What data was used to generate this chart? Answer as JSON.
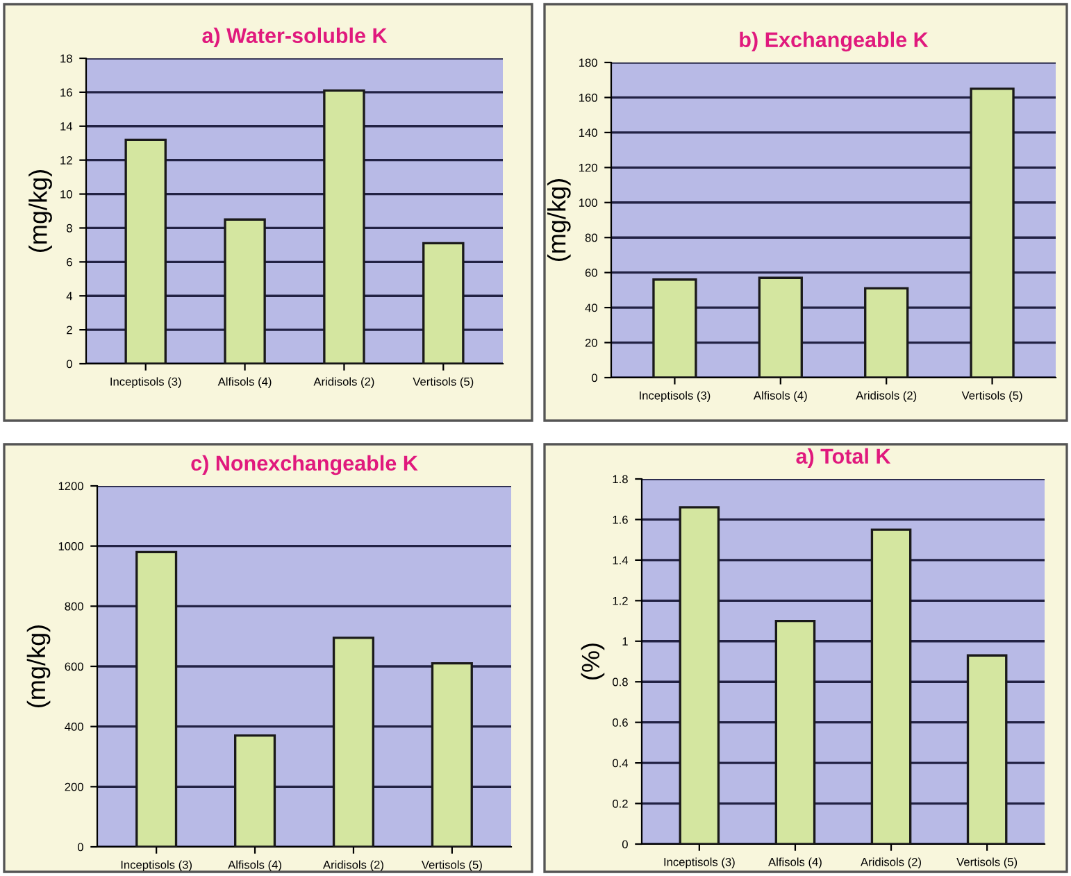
{
  "chart_data": [
    {
      "type": "bar",
      "title": "a) Water-soluble K",
      "ylabel": "(mg/kg)",
      "categories": [
        "Inceptisols (3)",
        "Alfisols (4)",
        "Aridisols (2)",
        "Vertisols (5)"
      ],
      "values": [
        13.2,
        8.5,
        16.1,
        7.1
      ],
      "color": "#d4e6a0",
      "ylim": [
        0,
        18
      ],
      "yticks": [
        0,
        2,
        4,
        6,
        8,
        10,
        12,
        14,
        16,
        18
      ],
      "grid": "y"
    },
    {
      "type": "bar",
      "title": "b) Exchangeable K",
      "ylabel": "(mg/kg)",
      "categories": [
        "Inceptisols (3)",
        "Alfisols (4)",
        "Aridisols (2)",
        "Vertisols (5)"
      ],
      "values": [
        56,
        57,
        51,
        165
      ],
      "color": "#d4e6a0",
      "ylim": [
        0,
        180
      ],
      "yticks": [
        0,
        20,
        40,
        60,
        80,
        100,
        120,
        140,
        160,
        180
      ],
      "grid": "y"
    },
    {
      "type": "bar",
      "title": "c) Nonexchangeable K",
      "ylabel": "(mg/kg)",
      "categories": [
        "Inceptisols (3)",
        "Alfisols (4)",
        "Aridisols (2)",
        "Vertisols (5)"
      ],
      "values": [
        980,
        370,
        695,
        610
      ],
      "color": "#d4e6a0",
      "ylim": [
        0,
        1200
      ],
      "yticks": [
        0,
        200,
        400,
        600,
        800,
        1000,
        1200
      ],
      "grid": "y"
    },
    {
      "type": "bar",
      "title": "a) Total K",
      "ylabel": "(%)",
      "categories": [
        "Inceptisols (3)",
        "Alfisols (4)",
        "Aridisols (2)",
        "Vertisols (5)"
      ],
      "values": [
        1.66,
        1.1,
        1.55,
        0.93
      ],
      "color": "#d4e6a0",
      "ylim": [
        0,
        1.8
      ],
      "yticks": [
        0,
        0.2,
        0.4,
        0.6,
        0.8,
        1,
        1.2,
        1.4,
        1.6,
        1.8
      ],
      "grid": "y"
    }
  ]
}
